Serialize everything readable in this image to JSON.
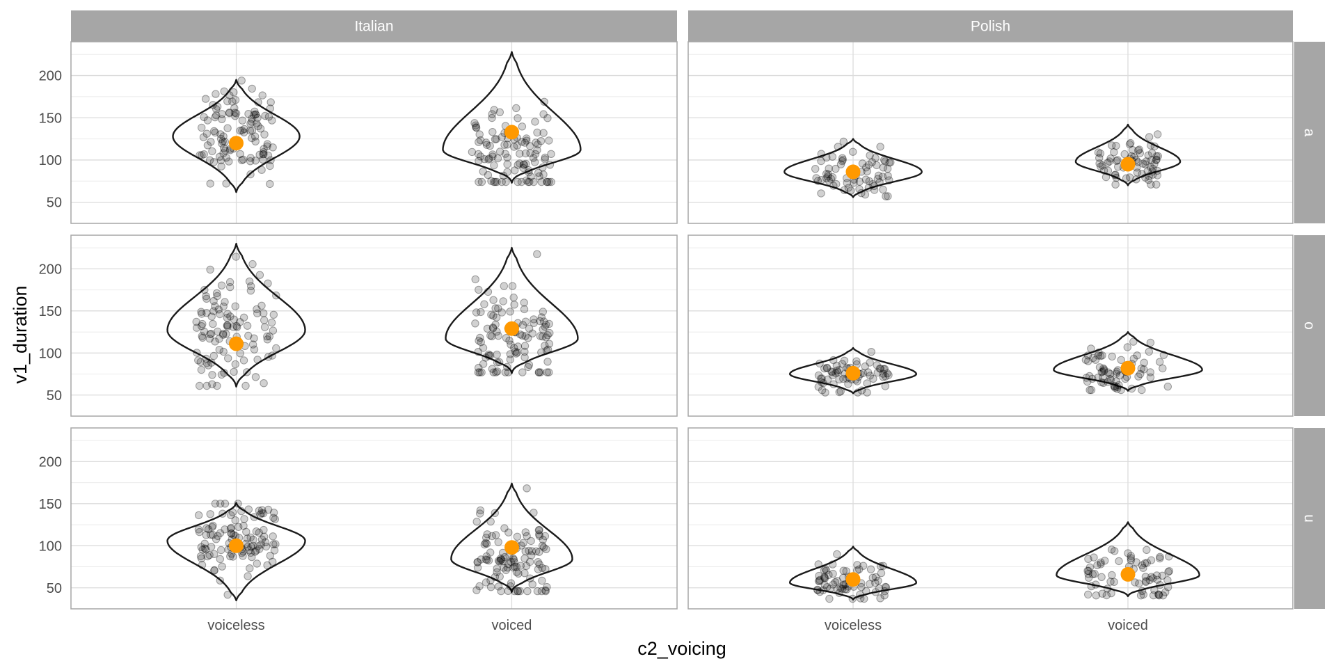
{
  "chart_data": {
    "type": "violin",
    "xlabel": "c2_voicing",
    "ylabel": "v1_duration",
    "x_categories": [
      "voiceless",
      "voiced"
    ],
    "y_ticks": [
      50,
      100,
      150,
      200
    ],
    "ylim": [
      25,
      240
    ],
    "grid": true,
    "facet_columns": [
      "Italian",
      "Polish"
    ],
    "facet_rows": [
      "a",
      "o",
      "u"
    ],
    "colors": {
      "strip": "#a6a6a6",
      "grid": "#dcdcdc",
      "panel_border": "#a6a6a6",
      "violin_outline": "#1a1a1a",
      "points": "#000000",
      "mean": "#ff9900"
    },
    "panels": [
      {
        "column": "Italian",
        "row": "a",
        "groups": [
          {
            "category": "voiceless",
            "mean": 120,
            "ymin": 62,
            "ymax": 195,
            "bulge_y": 128,
            "half_width": 0.23,
            "skew": 0.2
          },
          {
            "category": "voiced",
            "mean": 133,
            "ymin": 73,
            "ymax": 228,
            "bulge_y": 112,
            "half_width": 0.25,
            "skew": 0.05
          }
        ]
      },
      {
        "column": "Polish",
        "row": "a",
        "groups": [
          {
            "category": "voiceless",
            "mean": 86,
            "ymin": 56,
            "ymax": 125,
            "bulge_y": 86,
            "half_width": 0.25,
            "skew": 0.12
          },
          {
            "category": "voiced",
            "mean": 95,
            "ymin": 70,
            "ymax": 142,
            "bulge_y": 98,
            "half_width": 0.19,
            "skew": 0.12
          }
        ]
      },
      {
        "column": "Italian",
        "row": "o",
        "groups": [
          {
            "category": "voiceless",
            "mean": 111,
            "ymin": 60,
            "ymax": 230,
            "bulge_y": 127,
            "half_width": 0.25,
            "skew": 0.15
          },
          {
            "category": "voiced",
            "mean": 129,
            "ymin": 76,
            "ymax": 225,
            "bulge_y": 117,
            "half_width": 0.24,
            "skew": 0.1
          }
        ]
      },
      {
        "column": "Polish",
        "row": "o",
        "groups": [
          {
            "category": "voiceless",
            "mean": 76,
            "ymin": 52,
            "ymax": 106,
            "bulge_y": 75,
            "half_width": 0.23,
            "skew": 0.05
          },
          {
            "category": "voiced",
            "mean": 82,
            "ymin": 55,
            "ymax": 125,
            "bulge_y": 80,
            "half_width": 0.27,
            "skew": 0.1
          }
        ]
      },
      {
        "column": "Italian",
        "row": "u",
        "groups": [
          {
            "category": "voiceless",
            "mean": 100,
            "ymin": 35,
            "ymax": 151,
            "bulge_y": 106,
            "half_width": 0.25,
            "skew": 0.02
          },
          {
            "category": "voiced",
            "mean": 98,
            "ymin": 45,
            "ymax": 174,
            "bulge_y": 84,
            "half_width": 0.22,
            "skew": 0.05
          }
        ]
      },
      {
        "column": "Polish",
        "row": "u",
        "groups": [
          {
            "category": "voiceless",
            "mean": 60,
            "ymin": 36,
            "ymax": 99,
            "bulge_y": 56,
            "half_width": 0.23,
            "skew": 0.15
          },
          {
            "category": "voiced",
            "mean": 66,
            "ymin": 40,
            "ymax": 128,
            "bulge_y": 65,
            "half_width": 0.26,
            "skew": 0.1
          }
        ]
      }
    ]
  }
}
